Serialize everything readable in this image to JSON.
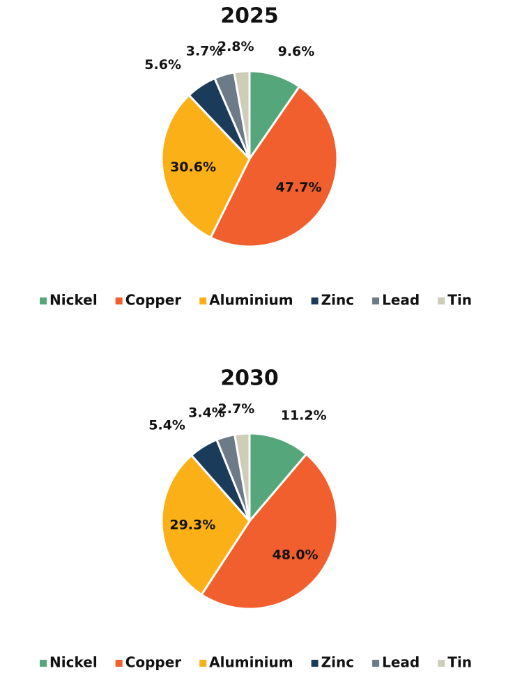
{
  "chart_data": [
    {
      "type": "pie",
      "title": "2025",
      "categories": [
        "Nickel",
        "Copper",
        "Aluminium",
        "Zinc",
        "Lead",
        "Tin"
      ],
      "values": [
        9.6,
        47.7,
        30.6,
        5.6,
        3.7,
        2.8
      ],
      "value_labels": [
        "9.6%",
        "47.7%",
        "30.6%",
        "5.6%",
        "3.7%",
        "2.8%"
      ],
      "colors": [
        "#55a77b",
        "#f05f2d",
        "#fbb017",
        "#1a3c5a",
        "#6d7b88",
        "#cdcdb8"
      ],
      "legend": "bottom"
    },
    {
      "type": "pie",
      "title": "2030",
      "categories": [
        "Nickel",
        "Copper",
        "Aluminium",
        "Zinc",
        "Lead",
        "Tin"
      ],
      "values": [
        11.2,
        48.0,
        29.3,
        5.4,
        3.4,
        2.7
      ],
      "value_labels": [
        "11.2%",
        "48.0%",
        "29.3%",
        "5.4%",
        "3.4%",
        "2.7%"
      ],
      "colors": [
        "#55a77b",
        "#f05f2d",
        "#fbb017",
        "#1a3c5a",
        "#6d7b88",
        "#cdcdb8"
      ],
      "legend": "bottom"
    }
  ]
}
